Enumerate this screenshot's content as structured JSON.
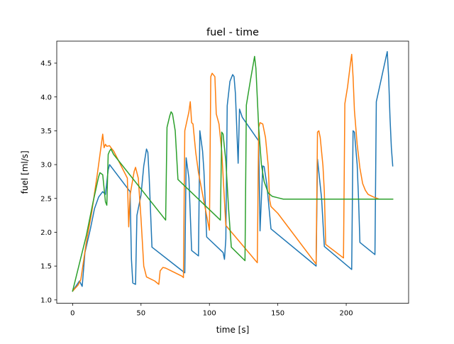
{
  "chart_data": {
    "type": "line",
    "title": "fuel - time",
    "xlabel": "time [s]",
    "ylabel": "fuel [ml/s]",
    "xlim": [
      -11.6,
      245.6
    ],
    "ylim": [
      0.95,
      4.825
    ],
    "xticks": [
      0,
      50,
      100,
      150,
      200
    ],
    "xtick_labels": [
      "0",
      "50",
      "100",
      "150",
      "200"
    ],
    "yticks": [
      1.0,
      1.5,
      2.0,
      2.5,
      3.0,
      3.5,
      4.0,
      4.5
    ],
    "ytick_labels": [
      "1.0",
      "1.5",
      "2.0",
      "2.5",
      "3.0",
      "3.5",
      "4.0",
      "4.5"
    ],
    "grid": false,
    "legend": "none",
    "series": [
      {
        "color": "#1f77b4",
        "points": [
          [
            0,
            1.13
          ],
          [
            3,
            1.22
          ],
          [
            5,
            1.28
          ],
          [
            7,
            1.2
          ],
          [
            9,
            1.7
          ],
          [
            13,
            2.05
          ],
          [
            16,
            2.35
          ],
          [
            19,
            2.52
          ],
          [
            22,
            2.6
          ],
          [
            24,
            2.56
          ],
          [
            26,
            2.92
          ],
          [
            27,
            3.0
          ],
          [
            42,
            2.6
          ],
          [
            43,
            1.6
          ],
          [
            44,
            1.25
          ],
          [
            46,
            1.23
          ],
          [
            47,
            2.25
          ],
          [
            50,
            2.55
          ],
          [
            52,
            2.98
          ],
          [
            54,
            3.23
          ],
          [
            55,
            3.18
          ],
          [
            56,
            2.8
          ],
          [
            58,
            1.78
          ],
          [
            82,
            1.4
          ],
          [
            83,
            3.1
          ],
          [
            85,
            2.8
          ],
          [
            87,
            1.73
          ],
          [
            92,
            1.65
          ],
          [
            93,
            3.5
          ],
          [
            95,
            3.2
          ],
          [
            96,
            2.9
          ],
          [
            98,
            1.93
          ],
          [
            110,
            1.7
          ],
          [
            111,
            1.6
          ],
          [
            112,
            1.9
          ],
          [
            113,
            3.87
          ],
          [
            115,
            4.23
          ],
          [
            117,
            4.33
          ],
          [
            118,
            4.3
          ],
          [
            119,
            4.05
          ],
          [
            121,
            3.02
          ],
          [
            122,
            3.82
          ],
          [
            124,
            3.7
          ],
          [
            136,
            3.35
          ],
          [
            137,
            2.02
          ],
          [
            139,
            2.98
          ],
          [
            140,
            2.97
          ],
          [
            142,
            2.7
          ],
          [
            145,
            2.05
          ],
          [
            178,
            1.5
          ],
          [
            179,
            3.08
          ],
          [
            182,
            2.5
          ],
          [
            184,
            1.79
          ],
          [
            204,
            1.45
          ],
          [
            205,
            3.5
          ],
          [
            206,
            3.48
          ],
          [
            208,
            3.0
          ],
          [
            209,
            2.5
          ],
          [
            210,
            1.85
          ],
          [
            221,
            1.67
          ],
          [
            222,
            3.93
          ],
          [
            226,
            4.3
          ],
          [
            229,
            4.58
          ],
          [
            230,
            4.67
          ],
          [
            231,
            4.3
          ],
          [
            232,
            3.7
          ],
          [
            233,
            3.25
          ],
          [
            234,
            2.98
          ]
        ]
      },
      {
        "color": "#ff7f0e",
        "points": [
          [
            0,
            1.13
          ],
          [
            4,
            1.22
          ],
          [
            6,
            1.3
          ],
          [
            10,
            1.85
          ],
          [
            14,
            2.3
          ],
          [
            18,
            2.85
          ],
          [
            22,
            3.45
          ],
          [
            23,
            3.25
          ],
          [
            24,
            3.3
          ],
          [
            25,
            3.27
          ],
          [
            27,
            3.28
          ],
          [
            28,
            3.25
          ],
          [
            30,
            3.2
          ],
          [
            40,
            2.8
          ],
          [
            41,
            2.08
          ],
          [
            42,
            2.55
          ],
          [
            45,
            2.9
          ],
          [
            46,
            2.96
          ],
          [
            48,
            2.8
          ],
          [
            50,
            2.2
          ],
          [
            52,
            1.5
          ],
          [
            54,
            1.34
          ],
          [
            60,
            1.28
          ],
          [
            63,
            1.23
          ],
          [
            64,
            1.43
          ],
          [
            66,
            1.48
          ],
          [
            68,
            1.47
          ],
          [
            80,
            1.35
          ],
          [
            81,
            1.33
          ],
          [
            82,
            3.5
          ],
          [
            85,
            3.78
          ],
          [
            86,
            3.93
          ],
          [
            87,
            3.62
          ],
          [
            88,
            3.6
          ],
          [
            90,
            3.18
          ],
          [
            92,
            2.88
          ],
          [
            100,
            2.03
          ],
          [
            101,
            4.3
          ],
          [
            102,
            4.35
          ],
          [
            104,
            4.3
          ],
          [
            105,
            3.75
          ],
          [
            107,
            3.6
          ],
          [
            109,
            3.2
          ],
          [
            112,
            2.1
          ],
          [
            135,
            1.55
          ],
          [
            136,
            3.55
          ],
          [
            137,
            3.62
          ],
          [
            139,
            3.6
          ],
          [
            141,
            3.4
          ],
          [
            143,
            2.98
          ],
          [
            144,
            2.48
          ],
          [
            145,
            2.38
          ],
          [
            150,
            2.28
          ],
          [
            178,
            1.53
          ],
          [
            179,
            3.48
          ],
          [
            180,
            3.5
          ],
          [
            181,
            3.4
          ],
          [
            183,
            2.98
          ],
          [
            184,
            2.6
          ],
          [
            185,
            1.82
          ],
          [
            198,
            1.62
          ],
          [
            199,
            3.9
          ],
          [
            201,
            4.15
          ],
          [
            203,
            4.48
          ],
          [
            204,
            4.63
          ],
          [
            205,
            4.3
          ],
          [
            206,
            3.8
          ],
          [
            208,
            3.3
          ],
          [
            210,
            2.95
          ],
          [
            212,
            2.72
          ],
          [
            214,
            2.62
          ],
          [
            216,
            2.56
          ],
          [
            220,
            2.52
          ],
          [
            224,
            2.49
          ],
          [
            234,
            2.49
          ]
        ]
      },
      {
        "color": "#2ca02c",
        "points": [
          [
            0,
            1.13
          ],
          [
            10,
            1.95
          ],
          [
            15,
            2.45
          ],
          [
            19,
            2.82
          ],
          [
            20,
            2.88
          ],
          [
            22,
            2.85
          ],
          [
            24,
            2.45
          ],
          [
            25,
            2.4
          ],
          [
            26,
            3.15
          ],
          [
            27,
            3.2
          ],
          [
            28,
            3.23
          ],
          [
            30,
            3.15
          ],
          [
            68,
            2.18
          ],
          [
            69,
            3.55
          ],
          [
            71,
            3.72
          ],
          [
            72,
            3.78
          ],
          [
            73,
            3.75
          ],
          [
            75,
            3.5
          ],
          [
            77,
            2.78
          ],
          [
            108,
            2.18
          ],
          [
            109,
            3.48
          ],
          [
            110,
            3.45
          ],
          [
            112,
            3.05
          ],
          [
            114,
            2.35
          ],
          [
            116,
            1.78
          ],
          [
            126,
            1.58
          ],
          [
            127,
            3.88
          ],
          [
            130,
            4.25
          ],
          [
            132,
            4.48
          ],
          [
            133,
            4.6
          ],
          [
            134,
            4.42
          ],
          [
            136,
            3.55
          ],
          [
            138,
            3.0
          ],
          [
            140,
            2.75
          ],
          [
            143,
            2.58
          ],
          [
            146,
            2.53
          ],
          [
            150,
            2.51
          ],
          [
            154,
            2.49
          ],
          [
            234,
            2.49
          ]
        ]
      }
    ]
  }
}
